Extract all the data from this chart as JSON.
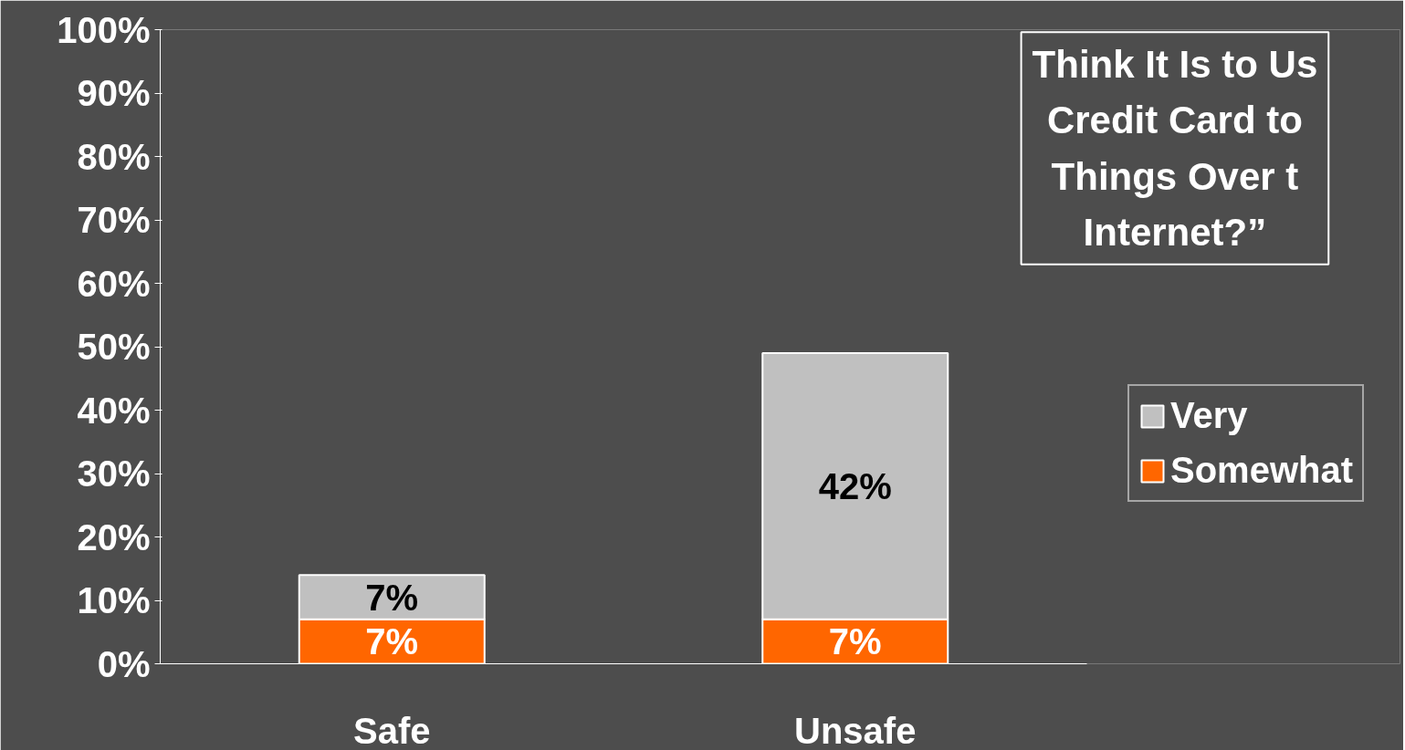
{
  "chart_data": {
    "type": "bar",
    "stacked": true,
    "title": "Think It Is to Us\nCredit Card to\nThings Over t\nInternet?”",
    "categories": [
      "Safe",
      "Unsafe"
    ],
    "series": [
      {
        "name": "Somewhat",
        "color": "#ff6600",
        "values": [
          7,
          7
        ],
        "value_labels": [
          "7%",
          "7%"
        ]
      },
      {
        "name": "Very",
        "color": "#c0c0c0",
        "values": [
          7,
          42
        ],
        "value_labels": [
          "7%",
          "42%"
        ]
      }
    ],
    "ylim": [
      0,
      100
    ],
    "yticks": [
      {
        "value": 0,
        "label": "0%"
      },
      {
        "value": 10,
        "label": "10%"
      },
      {
        "value": 20,
        "label": "20%"
      },
      {
        "value": 30,
        "label": "30%"
      },
      {
        "value": 40,
        "label": "40%"
      },
      {
        "value": 50,
        "label": "50%"
      },
      {
        "value": 60,
        "label": "60%"
      },
      {
        "value": 70,
        "label": "70%"
      },
      {
        "value": 80,
        "label": "80%"
      },
      {
        "value": 90,
        "label": "90%"
      },
      {
        "value": 100,
        "label": "100%"
      }
    ],
    "grid": false,
    "legend": "right"
  }
}
